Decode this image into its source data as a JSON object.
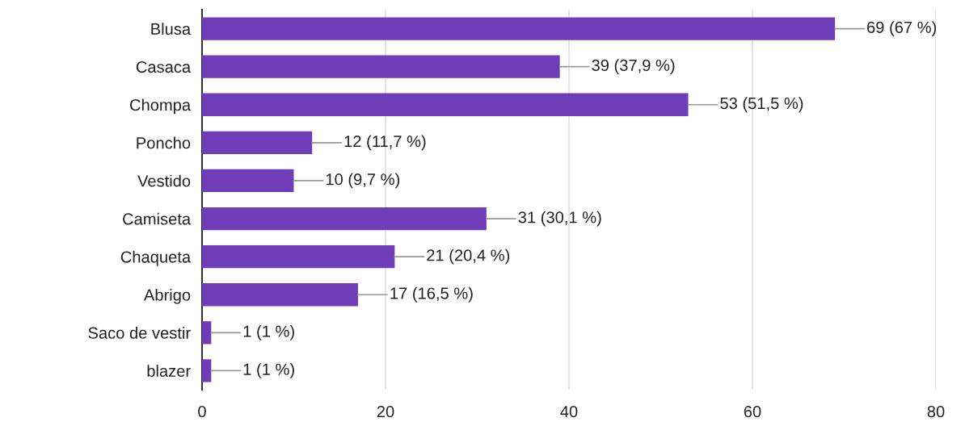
{
  "chart_data": {
    "type": "bar",
    "orientation": "horizontal",
    "categories": [
      "Blusa",
      "Casaca",
      "Chompa",
      "Poncho",
      "Vestido",
      "Camiseta",
      "Chaqueta",
      "Abrigo",
      "Saco de vestir",
      "blazer"
    ],
    "values": [
      69,
      39,
      53,
      12,
      10,
      31,
      21,
      17,
      1,
      1
    ],
    "value_labels": [
      "69 (67 %)",
      "39 (37,9 %)",
      "53 (51,5 %)",
      "12 (11,7 %)",
      "10 (9,7 %)",
      "31 (30,1 %)",
      "21 (20,4 %)",
      "17 (16,5 %)",
      "1 (1 %)",
      "1 (1 %)"
    ],
    "color": "#6f3db8",
    "xlim": [
      0,
      80
    ],
    "xticks": [
      0,
      20,
      40,
      60,
      80
    ],
    "grid": "x",
    "legend": false
  }
}
